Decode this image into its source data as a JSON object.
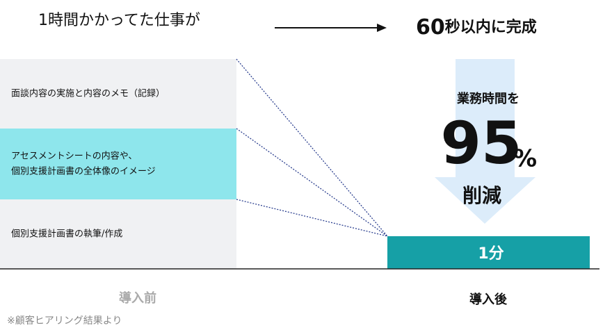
{
  "header": {
    "before": "1時間かかってた仕事が",
    "after_number": "60",
    "after_text": "秒以内に完成"
  },
  "tasks": [
    {
      "lines": [
        "面談内容の実施と内容のメモ（記録）"
      ]
    },
    {
      "lines": [
        "アセスメントシートの内容や、",
        "個別支援計画書の全体像のイメージ"
      ]
    },
    {
      "lines": [
        "個別支援計画書の執筆/作成"
      ]
    }
  ],
  "reduction": {
    "lead": "業務時間を",
    "number": "95",
    "unit": "%",
    "tail": "削減"
  },
  "after_bar": "1分",
  "labels": {
    "before": "導入前",
    "after": "導入後"
  },
  "note": "※顧客ヒアリング結果より"
}
